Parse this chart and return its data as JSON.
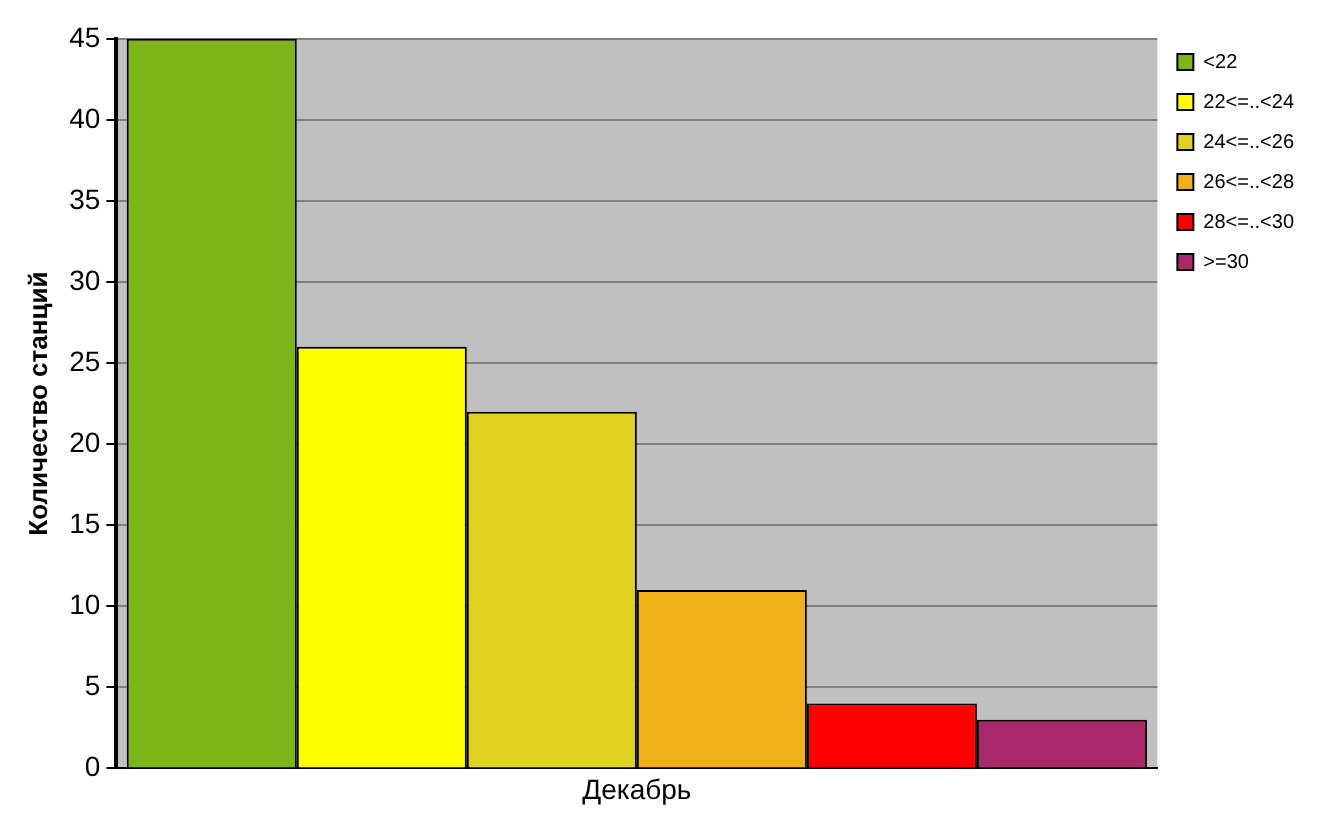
{
  "chart_data": {
    "type": "bar",
    "categories": [
      "Декабрь"
    ],
    "ylabel": "Количество станций",
    "series": [
      {
        "name": "<22",
        "color": "#7cb518",
        "values": [
          45
        ]
      },
      {
        "name": "22<=..<24",
        "color": "#ffff00",
        "values": [
          26
        ]
      },
      {
        "name": "24<=..<26",
        "color": "#e0d020",
        "values": [
          22
        ]
      },
      {
        "name": "26<=..<28",
        "color": "#f0b018",
        "values": [
          11
        ]
      },
      {
        "name": "28<=..<30",
        "color": "#ff0000",
        "values": [
          4
        ]
      },
      {
        "name": ">=30",
        "color": "#a8286a",
        "values": [
          3
        ]
      }
    ],
    "ylim": [
      0,
      45
    ],
    "yticks": [
      0,
      5,
      10,
      15,
      20,
      25,
      30,
      35,
      40,
      45
    ],
    "grid": "y",
    "legend": "top right"
  }
}
